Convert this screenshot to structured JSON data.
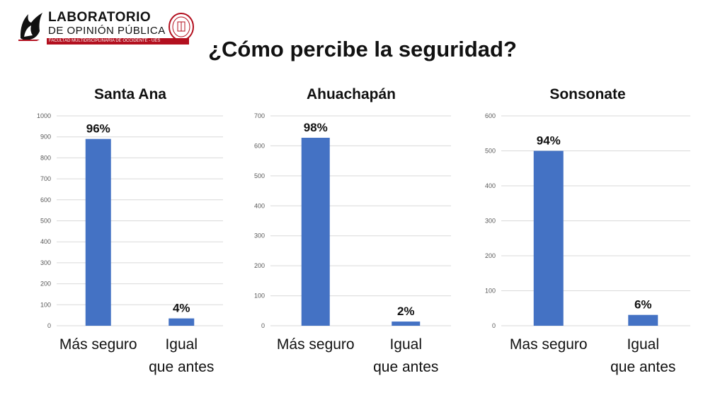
{
  "header": {
    "logo_line1": "LABORATORIO",
    "logo_line2": "DE OPINIÓN PÚBLICA",
    "logo_line3": "FACULTAD MULTIDISCIPLINARIA DE OCCIDENTE - UES",
    "title": "¿Cómo percibe la seguridad?"
  },
  "colors": {
    "bar": "#4472c4",
    "grid": "#d9d9d9",
    "accent": "#b3101f"
  },
  "chart_data": [
    {
      "type": "bar",
      "title": "Santa Ana",
      "categories": [
        "Más seguro",
        "Igual que antes"
      ],
      "values": [
        890,
        35
      ],
      "data_labels": [
        "96%",
        "4%"
      ],
      "yticks": [
        0,
        100,
        200,
        300,
        400,
        500,
        600,
        700,
        800,
        900,
        1000
      ],
      "ylim": [
        0,
        1000
      ],
      "grid": true
    },
    {
      "type": "bar",
      "title": "Ahuachapán",
      "categories": [
        "Más seguro",
        "Igual que antes"
      ],
      "values": [
        627,
        14
      ],
      "data_labels": [
        "98%",
        "2%"
      ],
      "yticks": [
        0,
        100,
        200,
        300,
        400,
        500,
        600,
        700
      ],
      "ylim": [
        0,
        700
      ],
      "grid": true
    },
    {
      "type": "bar",
      "title": "Sonsonate",
      "categories": [
        "Mas seguro",
        "Igual que antes"
      ],
      "values": [
        500,
        31
      ],
      "data_labels": [
        "94%",
        "6%"
      ],
      "yticks": [
        0,
        100,
        200,
        300,
        400,
        500,
        600
      ],
      "ylim": [
        0,
        600
      ],
      "grid": true
    }
  ]
}
